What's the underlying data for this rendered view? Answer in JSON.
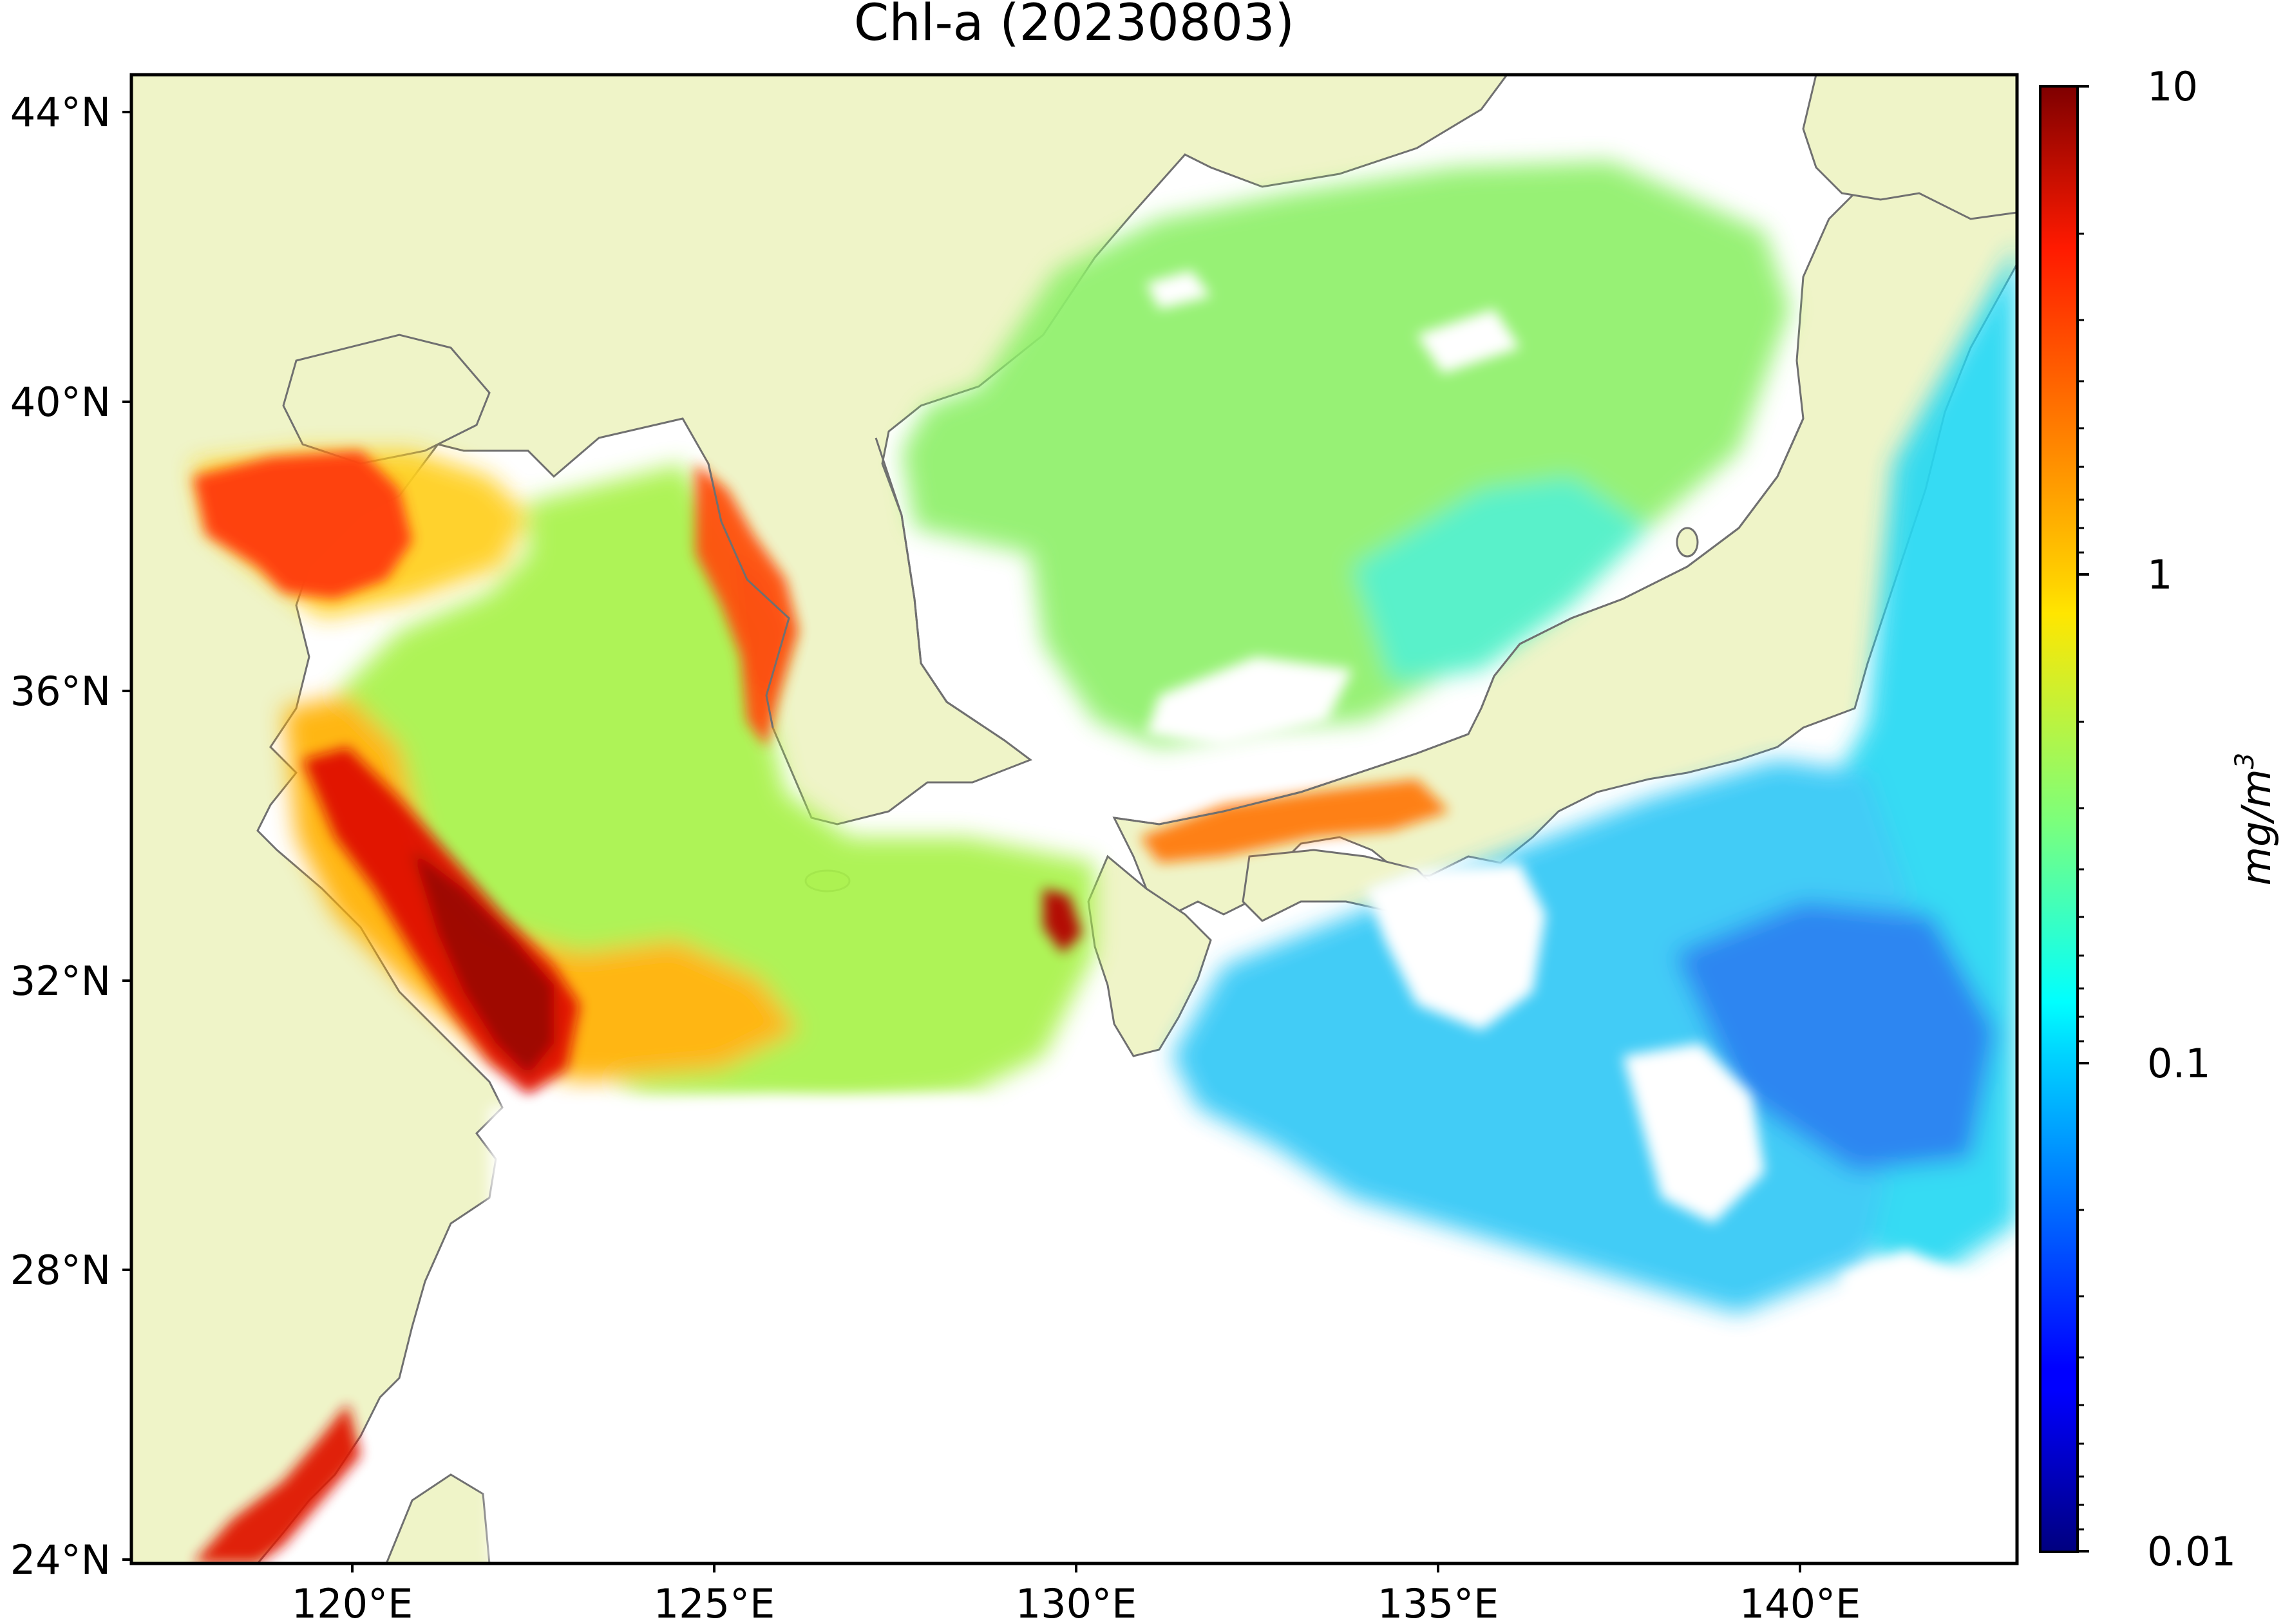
{
  "title": "Chl-a (20230803)",
  "map": {
    "lat_ticks": [
      "44°N",
      "40°N",
      "36°N",
      "32°N",
      "28°N",
      "24°N"
    ],
    "lon_ticks": [
      "120°E",
      "125°E",
      "130°E",
      "135°E",
      "140°E"
    ],
    "extent": {
      "lon": [
        117,
        143
      ],
      "lat": [
        24,
        44.5
      ]
    },
    "land_color": "#eff4c8",
    "ocean_nodata_color": "#ffffff",
    "coastline_color": "#707070"
  },
  "colorbar": {
    "label": "mg/m",
    "label_sup": "3",
    "ticks": [
      "10",
      "1",
      "0.1",
      "0.01"
    ],
    "scale": "log",
    "range": [
      0.01,
      10
    ],
    "colormap": "jet"
  }
}
